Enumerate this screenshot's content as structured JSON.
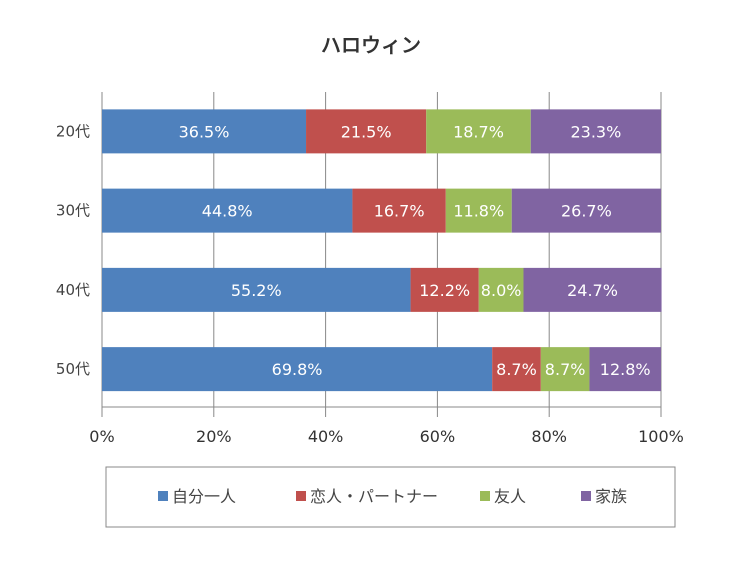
{
  "chart_data": {
    "type": "bar",
    "orientation": "horizontal",
    "stacked": "percent",
    "title": "ハロウィン",
    "categories": [
      "20代",
      "30代",
      "40代",
      "50代"
    ],
    "series": [
      {
        "name": "自分一人",
        "color": "#4f81bd",
        "values": [
          36.5,
          44.8,
          55.2,
          69.8
        ]
      },
      {
        "name": "恋人・パートナー",
        "color": "#c0504d",
        "values": [
          21.5,
          16.7,
          12.2,
          8.7
        ]
      },
      {
        "name": "友人",
        "color": "#9bbb59",
        "values": [
          18.7,
          11.8,
          8.0,
          8.7
        ]
      },
      {
        "name": "家族",
        "color": "#8064a2",
        "values": [
          23.3,
          26.7,
          24.7,
          12.8
        ]
      }
    ],
    "data_labels": [
      [
        "36.5%",
        "21.5%",
        "18.7%",
        "23.3%"
      ],
      [
        "44.8%",
        "16.7%",
        "11.8%",
        "26.7%"
      ],
      [
        "55.2%",
        "12.2%",
        "8.0%",
        "24.7%"
      ],
      [
        "69.8%",
        "8.7%",
        "8.7%",
        "12.8%"
      ]
    ],
    "xlim": [
      0,
      100
    ],
    "xticks": [
      "0%",
      "20%",
      "40%",
      "60%",
      "80%",
      "100%"
    ],
    "grid": true,
    "legend": "bottom"
  }
}
